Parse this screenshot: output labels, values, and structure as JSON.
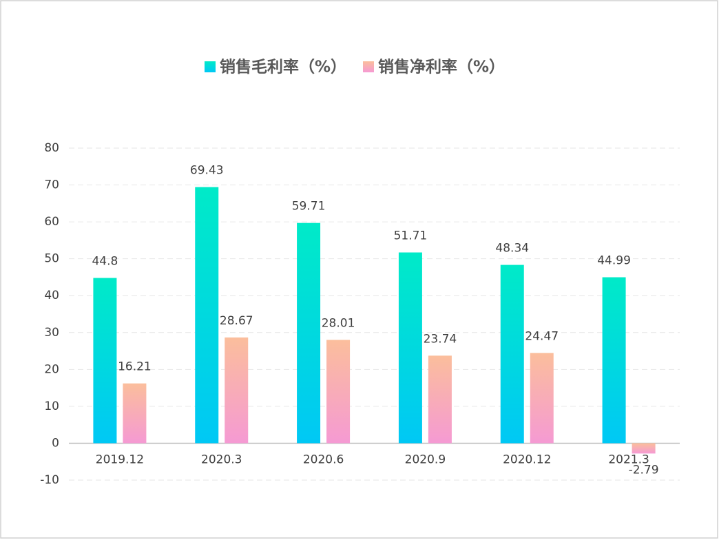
{
  "chart_data": {
    "type": "bar",
    "categories": [
      "2019.12",
      "2020.3",
      "2020.6",
      "2020.9",
      "2020.12",
      "2021.3"
    ],
    "series": [
      {
        "name": "销售毛利率（%）",
        "color": "#00eac8",
        "values": [
          44.8,
          69.43,
          59.71,
          51.71,
          48.34,
          44.99
        ]
      },
      {
        "name": "销售净利率（%）",
        "color": "#fbbe9c",
        "values": [
          16.21,
          28.67,
          28.01,
          23.74,
          24.47,
          -2.79
        ]
      }
    ],
    "ylim": [
      -10,
      80
    ],
    "yticks": [
      -10,
      0,
      10,
      20,
      30,
      40,
      50,
      60,
      70,
      80
    ],
    "grid": true
  }
}
